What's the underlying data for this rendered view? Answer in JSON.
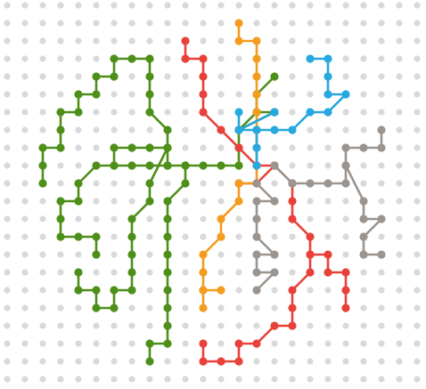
{
  "grid": {
    "columns": 24,
    "rows": 22,
    "dot_color": "#d9d9d9"
  },
  "colors": {
    "green": "#4e8f1a",
    "red": "#e8413a",
    "orange": "#f39c1f",
    "blue": "#27a8df",
    "gray": "#9b948f"
  },
  "paths": [
    {
      "name": "green-left-loop",
      "color": "green",
      "points": [
        [
          9,
          8
        ],
        [
          9,
          9
        ],
        [
          8,
          9
        ],
        [
          7,
          9
        ],
        [
          6,
          9
        ],
        [
          6,
          8
        ],
        [
          7,
          8
        ],
        [
          8,
          8
        ],
        [
          9,
          8
        ],
        [
          9,
          7
        ],
        [
          8,
          6
        ],
        [
          8,
          5
        ],
        [
          8,
          4
        ],
        [
          8,
          3
        ],
        [
          7,
          3
        ],
        [
          6,
          3
        ],
        [
          6,
          4
        ],
        [
          5,
          4
        ],
        [
          5,
          5
        ],
        [
          4,
          5
        ],
        [
          4,
          6
        ],
        [
          3,
          6
        ],
        [
          3,
          7
        ],
        [
          3,
          8
        ],
        [
          2,
          8
        ],
        [
          2,
          9
        ],
        [
          2,
          10
        ]
      ]
    },
    {
      "name": "green-left-lower",
      "color": "green",
      "points": [
        [
          9,
          8
        ],
        [
          8,
          10
        ],
        [
          8,
          11
        ],
        [
          7,
          12
        ],
        [
          7,
          13
        ],
        [
          7,
          14
        ],
        [
          7,
          15
        ],
        [
          7,
          16
        ],
        [
          6,
          16
        ],
        [
          6,
          17
        ],
        [
          5,
          17
        ],
        [
          5,
          16
        ],
        [
          4,
          16
        ],
        [
          4,
          15
        ]
      ]
    },
    {
      "name": "green-left-bottom",
      "color": "green",
      "points": [
        [
          6,
          9
        ],
        [
          5,
          9
        ],
        [
          4,
          10
        ],
        [
          4,
          11
        ],
        [
          3,
          11
        ],
        [
          3,
          12
        ],
        [
          3,
          13
        ],
        [
          4,
          13
        ],
        [
          5,
          13
        ],
        [
          5,
          14
        ]
      ]
    },
    {
      "name": "green-center",
      "color": "green",
      "points": [
        [
          15,
          4
        ],
        [
          14,
          5
        ],
        [
          14,
          6
        ],
        [
          13,
          7
        ],
        [
          13,
          8
        ],
        [
          13,
          9
        ],
        [
          12,
          9
        ],
        [
          11,
          9
        ],
        [
          10,
          9
        ],
        [
          9,
          9
        ]
      ]
    },
    {
      "name": "green-center-down",
      "color": "green",
      "points": [
        [
          10,
          9
        ],
        [
          10,
          10
        ],
        [
          9,
          11
        ],
        [
          9,
          12
        ],
        [
          9,
          13
        ],
        [
          9,
          14
        ],
        [
          9,
          15
        ],
        [
          9,
          16
        ],
        [
          9,
          17
        ],
        [
          9,
          18
        ],
        [
          9,
          19
        ],
        [
          8,
          19
        ],
        [
          8,
          20
        ]
      ]
    },
    {
      "name": "green-spoke",
      "color": "green",
      "points": [
        [
          13,
          7
        ],
        [
          15,
          6
        ],
        [
          14,
          6
        ]
      ]
    },
    {
      "name": "green-spoke-2",
      "color": "green",
      "points": [
        [
          13,
          7
        ],
        [
          15,
          6
        ]
      ]
    },
    {
      "name": "red-main",
      "color": "red",
      "points": [
        [
          10,
          2
        ],
        [
          10,
          3
        ],
        [
          11,
          3
        ],
        [
          11,
          4
        ],
        [
          11,
          5
        ],
        [
          11,
          6
        ],
        [
          12,
          7
        ],
        [
          13,
          8
        ],
        [
          14,
          9
        ],
        [
          15,
          9
        ],
        [
          16,
          10
        ],
        [
          16,
          11
        ],
        [
          16,
          12
        ],
        [
          17,
          13
        ],
        [
          17,
          14
        ],
        [
          17,
          15
        ],
        [
          16,
          16
        ],
        [
          16,
          17
        ],
        [
          16,
          18
        ],
        [
          15,
          18
        ],
        [
          14,
          19
        ],
        [
          13,
          19
        ],
        [
          13,
          20
        ],
        [
          12,
          20
        ],
        [
          11,
          20
        ],
        [
          11,
          19
        ]
      ]
    },
    {
      "name": "red-branch",
      "color": "red",
      "points": [
        [
          15,
          9
        ],
        [
          14,
          10
        ],
        [
          13,
          10
        ]
      ]
    },
    {
      "name": "red-right",
      "color": "red",
      "points": [
        [
          17,
          14
        ],
        [
          18,
          14
        ],
        [
          18,
          15
        ],
        [
          19,
          15
        ],
        [
          19,
          16
        ],
        [
          19,
          17
        ]
      ]
    },
    {
      "name": "orange-line",
      "color": "orange",
      "points": [
        [
          13,
          1
        ],
        [
          13,
          2
        ],
        [
          14,
          2
        ],
        [
          14,
          3
        ],
        [
          14,
          4
        ],
        [
          14,
          5
        ],
        [
          14,
          6
        ],
        [
          14,
          7
        ],
        [
          14,
          8
        ],
        [
          14,
          9
        ],
        [
          14,
          10
        ],
        [
          13,
          10
        ],
        [
          13,
          11
        ],
        [
          12,
          12
        ],
        [
          12,
          13
        ],
        [
          11,
          14
        ],
        [
          11,
          15
        ],
        [
          11,
          16
        ],
        [
          11,
          17
        ]
      ]
    },
    {
      "name": "orange-tail",
      "color": "orange",
      "points": [
        [
          11,
          16
        ],
        [
          12,
          16
        ]
      ]
    },
    {
      "name": "blue-line",
      "color": "blue",
      "points": [
        [
          17,
          3
        ],
        [
          18,
          3
        ],
        [
          18,
          4
        ],
        [
          18,
          5
        ],
        [
          19,
          5
        ],
        [
          18,
          6
        ],
        [
          17,
          6
        ],
        [
          16,
          7
        ],
        [
          15,
          7
        ],
        [
          14,
          7
        ],
        [
          13,
          7
        ],
        [
          13,
          6
        ]
      ]
    },
    {
      "name": "blue-down",
      "color": "blue",
      "points": [
        [
          14,
          7
        ],
        [
          14,
          8
        ],
        [
          14,
          9
        ]
      ]
    },
    {
      "name": "blue-diag",
      "color": "blue",
      "points": [
        [
          13,
          7
        ],
        [
          15,
          6
        ]
      ]
    },
    {
      "name": "gray-main",
      "color": "gray",
      "points": [
        [
          14,
          10
        ],
        [
          15,
          11
        ],
        [
          14,
          11
        ],
        [
          14,
          12
        ],
        [
          14,
          13
        ],
        [
          15,
          14
        ],
        [
          14,
          14
        ],
        [
          14,
          15
        ],
        [
          15,
          15
        ],
        [
          14,
          16
        ]
      ]
    },
    {
      "name": "gray-right",
      "color": "gray",
      "points": [
        [
          16,
          10
        ],
        [
          17,
          10
        ],
        [
          18,
          10
        ],
        [
          19,
          10
        ],
        [
          19,
          9
        ],
        [
          20,
          11
        ],
        [
          20,
          12
        ],
        [
          21,
          12
        ],
        [
          20,
          13
        ],
        [
          20,
          14
        ],
        [
          21,
          14
        ]
      ]
    },
    {
      "name": "gray-top",
      "color": "gray",
      "points": [
        [
          19,
          9
        ],
        [
          19,
          8
        ],
        [
          20,
          8
        ],
        [
          21,
          8
        ],
        [
          21,
          7
        ]
      ]
    },
    {
      "name": "gray-link",
      "color": "gray",
      "points": [
        [
          15,
          9
        ],
        [
          16,
          10
        ]
      ]
    }
  ]
}
